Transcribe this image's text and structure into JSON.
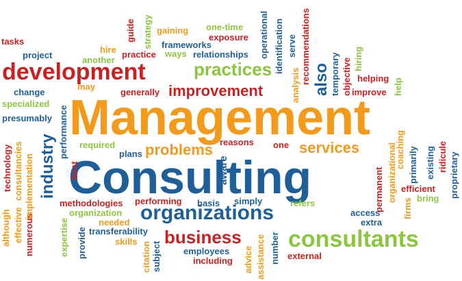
{
  "colors": {
    "red": "#cc1f1f",
    "blue": "#1f5f99",
    "orange": "#f39a1b",
    "green": "#8cc63f"
  },
  "words": [
    {
      "text": "tasks",
      "color": "red"
    },
    {
      "text": "project",
      "color": "blue"
    },
    {
      "text": "development",
      "color": "red"
    },
    {
      "text": "change",
      "color": "blue"
    },
    {
      "text": "specialized",
      "color": "green"
    },
    {
      "text": "presumably",
      "color": "blue"
    },
    {
      "text": "hire",
      "color": "orange"
    },
    {
      "text": "another",
      "color": "green"
    },
    {
      "text": "practice",
      "color": "red"
    },
    {
      "text": "guide",
      "color": "red"
    },
    {
      "text": "strategy",
      "color": "green"
    },
    {
      "text": "gaining",
      "color": "orange"
    },
    {
      "text": "one-time",
      "color": "green"
    },
    {
      "text": "exposure",
      "color": "red"
    },
    {
      "text": "frameworks",
      "color": "blue"
    },
    {
      "text": "ways",
      "color": "green"
    },
    {
      "text": "relationships",
      "color": "blue"
    },
    {
      "text": "practices",
      "color": "green"
    },
    {
      "text": "may",
      "color": "orange"
    },
    {
      "text": "generally",
      "color": "red"
    },
    {
      "text": "improvement",
      "color": "red"
    },
    {
      "text": "also",
      "color": "blue"
    },
    {
      "text": "helping",
      "color": "red"
    },
    {
      "text": "improve",
      "color": "red"
    },
    {
      "text": "Management",
      "color": "orange"
    },
    {
      "text": "required",
      "color": "green"
    },
    {
      "text": "plans",
      "color": "blue"
    },
    {
      "text": "problems",
      "color": "orange"
    },
    {
      "text": "reasons",
      "color": "red"
    },
    {
      "text": "one",
      "color": "red"
    },
    {
      "text": "services",
      "color": "orange"
    },
    {
      "text": "Consulting",
      "color": "blue"
    },
    {
      "text": "industry",
      "color": "blue"
    },
    {
      "text": "performance",
      "color": "blue"
    },
    {
      "text": "best",
      "color": "red"
    },
    {
      "text": "aware",
      "color": "blue"
    },
    {
      "text": "methodologies",
      "color": "red"
    },
    {
      "text": "performing",
      "color": "red"
    },
    {
      "text": "basis",
      "color": "blue"
    },
    {
      "text": "simply",
      "color": "blue"
    },
    {
      "text": "refers",
      "color": "green"
    },
    {
      "text": "organization",
      "color": "green"
    },
    {
      "text": "organizations",
      "color": "blue"
    },
    {
      "text": "needed",
      "color": "orange"
    },
    {
      "text": "transferability",
      "color": "blue"
    },
    {
      "text": "skills",
      "color": "orange"
    },
    {
      "text": "business",
      "color": "red"
    },
    {
      "text": "access",
      "color": "blue"
    },
    {
      "text": "extra",
      "color": "blue"
    },
    {
      "text": "consultants",
      "color": "green"
    },
    {
      "text": "employees",
      "color": "blue"
    },
    {
      "text": "including",
      "color": "red"
    },
    {
      "text": "external",
      "color": "red"
    },
    {
      "text": "efficient",
      "color": "red"
    },
    {
      "text": "bring",
      "color": "green"
    },
    {
      "text": "although",
      "color": "orange"
    },
    {
      "text": "technology",
      "color": "red"
    },
    {
      "text": "effective",
      "color": "orange"
    },
    {
      "text": "consultancies",
      "color": "orange"
    },
    {
      "text": "numerous",
      "color": "red"
    },
    {
      "text": "implementation",
      "color": "orange"
    },
    {
      "text": "expertise",
      "color": "green"
    },
    {
      "text": "provide",
      "color": "blue"
    },
    {
      "text": "citation",
      "color": "orange"
    },
    {
      "text": "subject",
      "color": "blue"
    },
    {
      "text": "advice",
      "color": "orange"
    },
    {
      "text": "assistance",
      "color": "orange"
    },
    {
      "text": "number",
      "color": "blue"
    },
    {
      "text": "operational",
      "color": "blue"
    },
    {
      "text": "identification",
      "color": "blue"
    },
    {
      "text": "serve",
      "color": "blue"
    },
    {
      "text": "recommendations",
      "color": "red"
    },
    {
      "text": "analysis",
      "color": "orange"
    },
    {
      "text": "temporary",
      "color": "blue"
    },
    {
      "text": "objective",
      "color": "red"
    },
    {
      "text": "hiring",
      "color": "green"
    },
    {
      "text": "help",
      "color": "green"
    },
    {
      "text": "permanent",
      "color": "red"
    },
    {
      "text": "organizational",
      "color": "orange"
    },
    {
      "text": "coaching",
      "color": "orange"
    },
    {
      "text": "firms",
      "color": "orange"
    },
    {
      "text": "primarily",
      "color": "blue"
    },
    {
      "text": "existing",
      "color": "blue"
    },
    {
      "text": "ridicule",
      "color": "red"
    },
    {
      "text": "proprietary",
      "color": "blue"
    }
  ]
}
